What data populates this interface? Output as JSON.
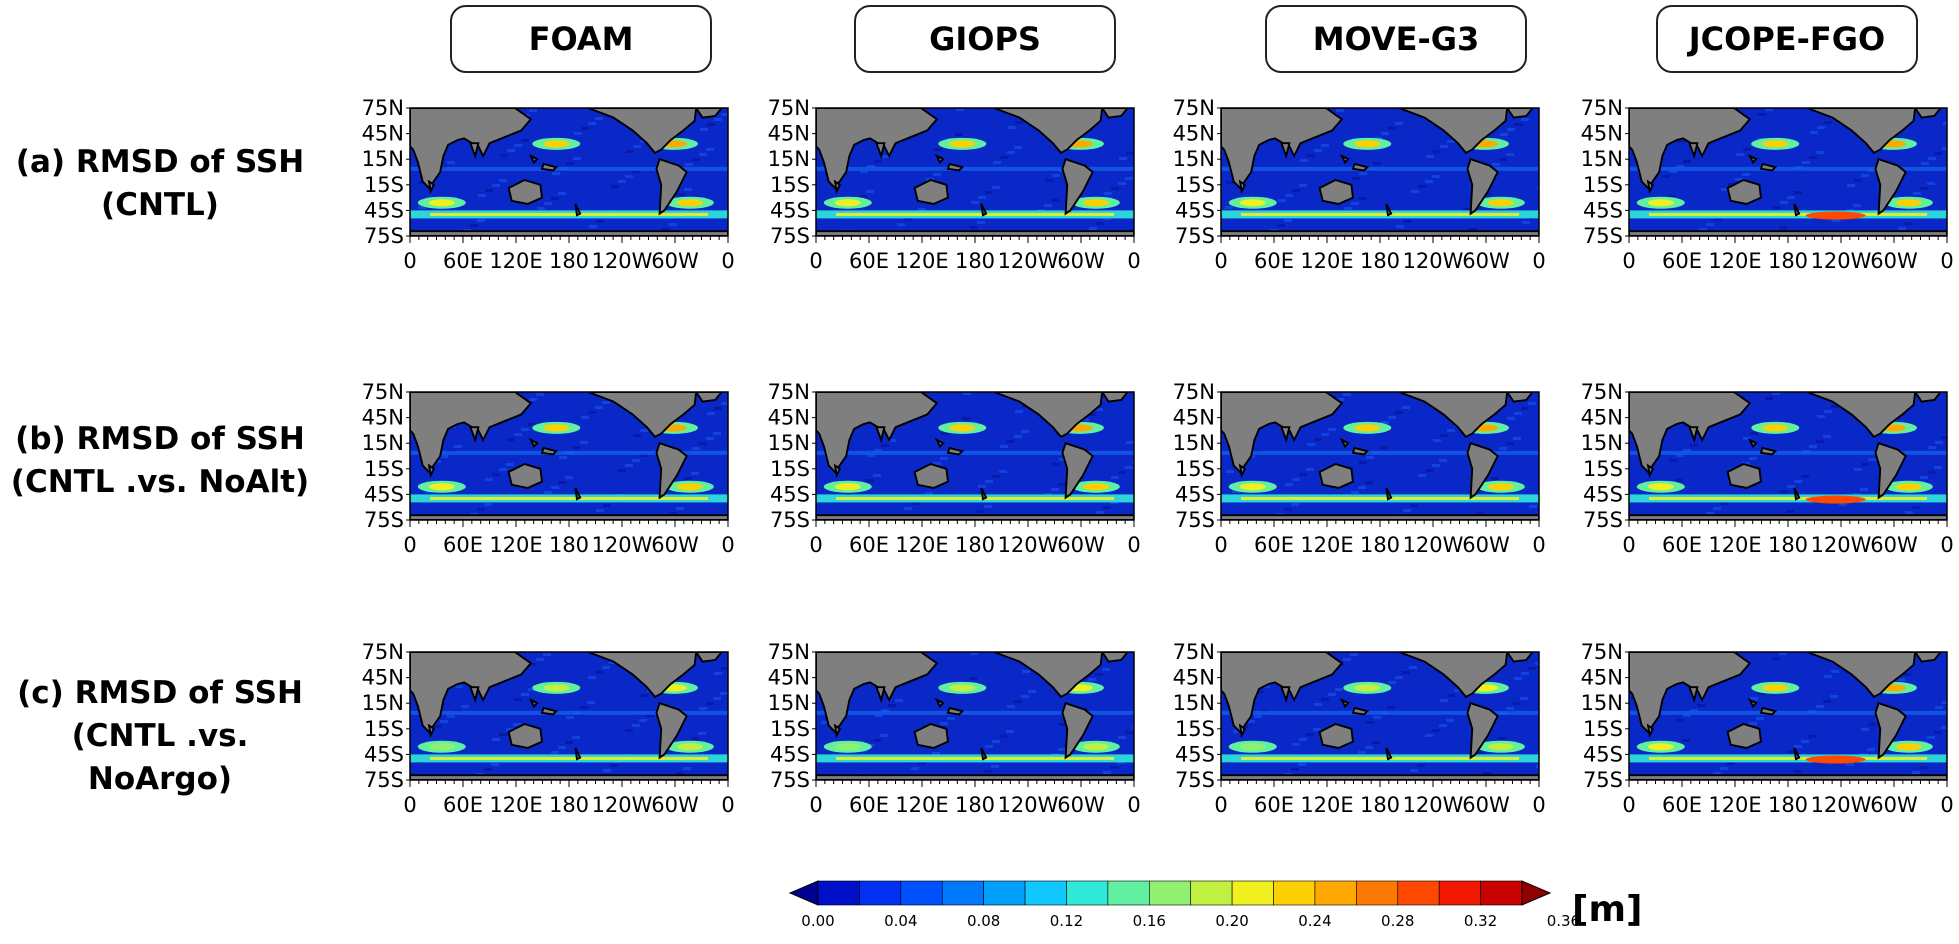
{
  "columns": [
    {
      "label": "FOAM"
    },
    {
      "label": "GIOPS"
    },
    {
      "label": "MOVE-G3"
    },
    {
      "label": "JCOPE-FGO"
    }
  ],
  "rows": [
    {
      "line1": "(a) RMSD of SSH",
      "line2": "(CNTL)"
    },
    {
      "line1": "(b) RMSD of SSH",
      "line2": "(CNTL .vs. NoAlt)"
    },
    {
      "line1": "(c) RMSD of SSH",
      "line2": "(CNTL .vs. NoArgo)"
    }
  ],
  "axes": {
    "lat_ticks": [
      "75N",
      "45N",
      "15N",
      "15S",
      "45S",
      "75S"
    ],
    "lon_ticks": [
      "0",
      "60E",
      "120E",
      "180",
      "120W",
      "60W",
      "0"
    ]
  },
  "colorbar": {
    "unit": "[m]",
    "tick_labels": [
      "0.00",
      "0.04",
      "0.08",
      "0.12",
      "0.16",
      "0.20",
      "0.24",
      "0.28",
      "0.32",
      "0.36"
    ],
    "colors": [
      "#00008f",
      "#0010c8",
      "#0030f0",
      "#0050ff",
      "#0078ff",
      "#00a0ff",
      "#10c8ff",
      "#30e8d8",
      "#60f0a0",
      "#90f070",
      "#c0f040",
      "#f0f020",
      "#ffd000",
      "#ffa800",
      "#ff7800",
      "#ff4800",
      "#f01800",
      "#c80000",
      "#8f0000"
    ],
    "land_color": "#7f7f7f"
  }
}
